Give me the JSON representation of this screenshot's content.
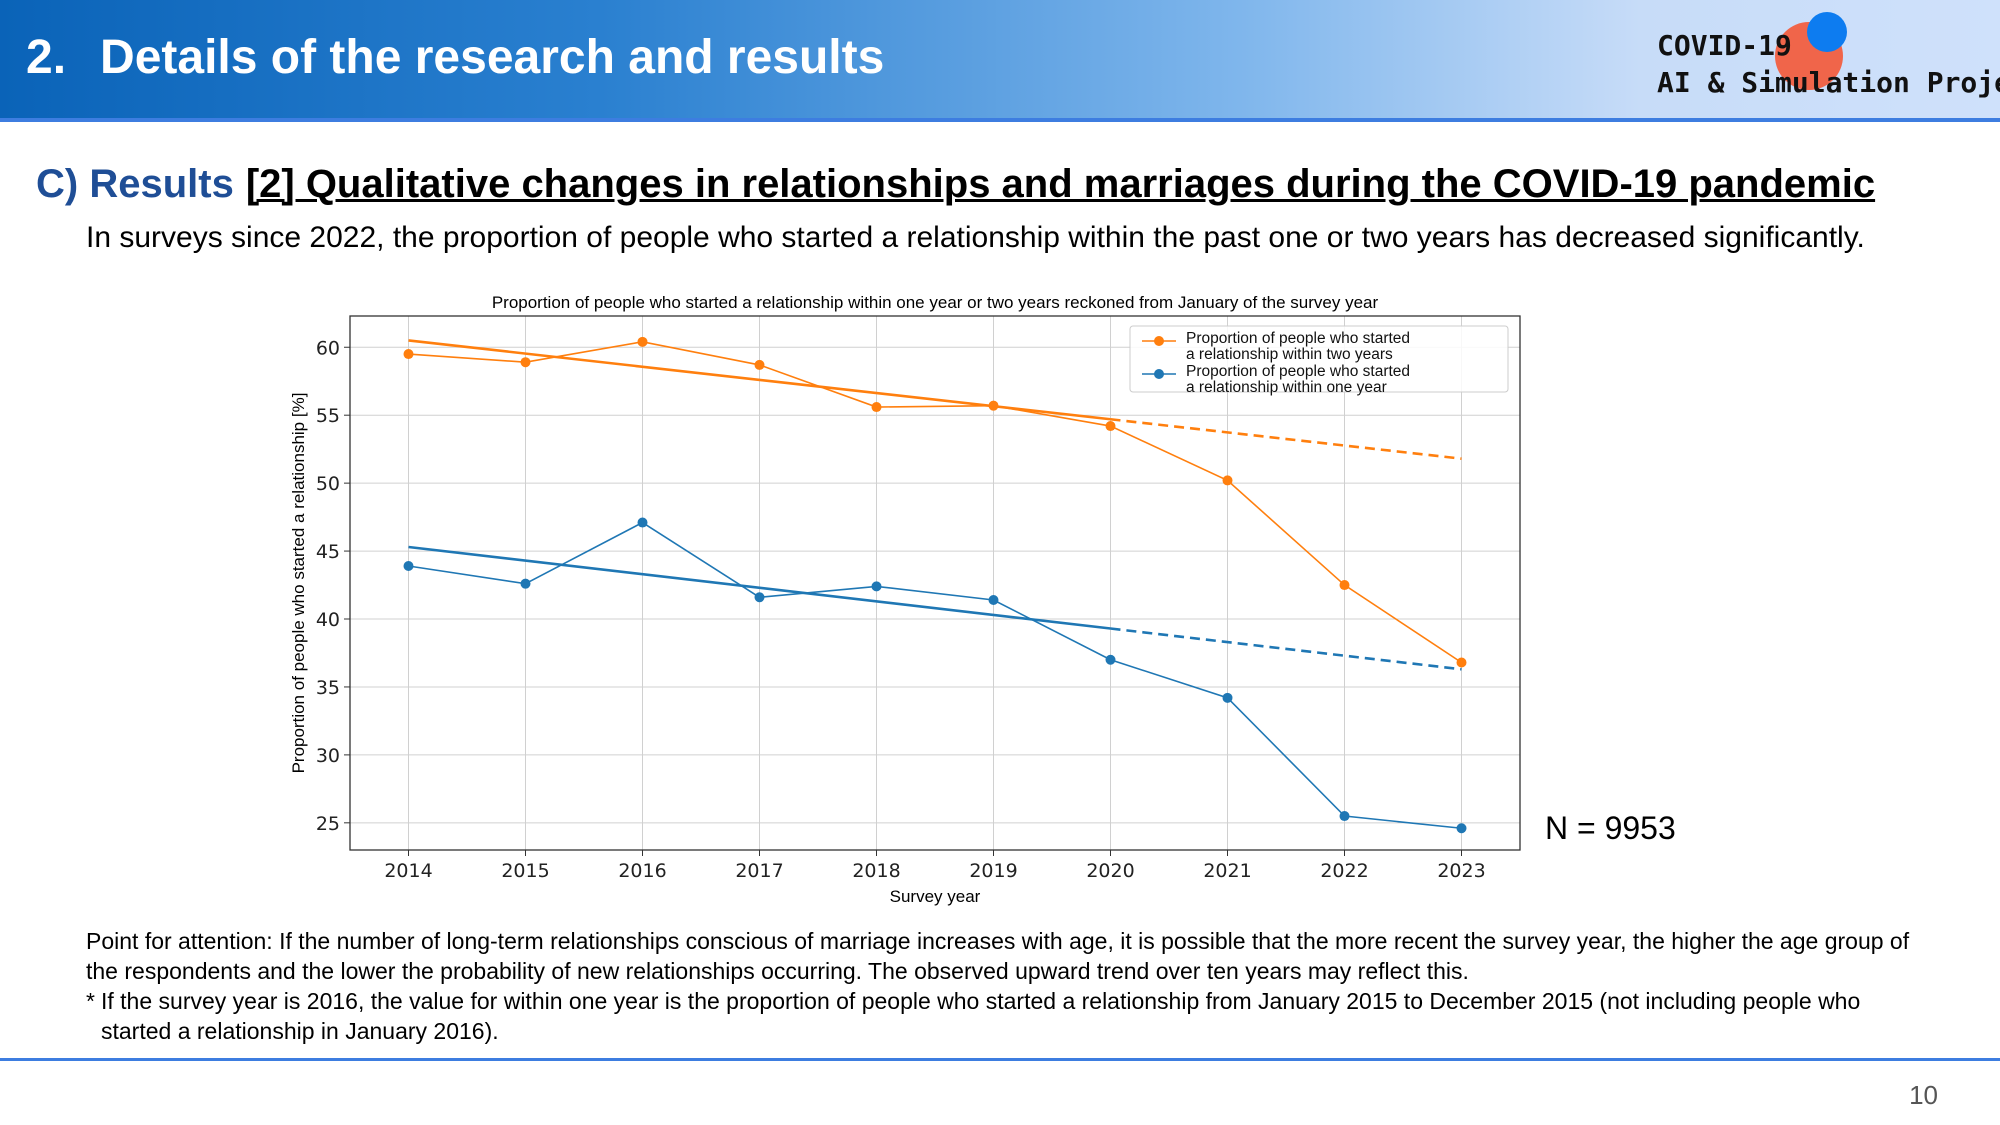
{
  "header": {
    "number": "2.",
    "title": "Details of the research and results",
    "logo_line1": "COVID-19",
    "logo_line2": "AI & Simulation Project"
  },
  "subtitle": {
    "prefix": "C) Results",
    "main": "[2] Qualitative changes in relationships and marriages during the COVID-19 pandemic"
  },
  "intro": "In surveys since 2022, the proportion of people who started a relationship within the past one or two years has decreased significantly.",
  "n_label": "N = 9953",
  "notes": {
    "attention": "Point for attention: If the number of long-term relationships conscious of marriage increases with age, it is possible that the more recent the survey year, the higher the age group of the respondents and the lower the probability of new relationships occurring. The observed upward trend over ten years may reflect this.",
    "footnote_mark": "*",
    "footnote": "If the survey year is 2016, the value for within one year is the proportion of people who started a relationship from January 2015 to December 2015 (not including people who started a relationship in January 2016)."
  },
  "page_number": "10",
  "colors": {
    "orange": "#ff7f0e",
    "blue": "#1f77b4",
    "accent": "#3d7de0",
    "results_blue": "#1f4e96"
  },
  "chart_data": {
    "type": "line",
    "title": "Proportion of people who started a relationship within one year or two years reckoned from January of the survey year",
    "xlabel": "Survey year",
    "ylabel": "Proportion of people who started a relationship [%]",
    "x": [
      2014,
      2015,
      2016,
      2017,
      2018,
      2019,
      2020,
      2021,
      2022,
      2023
    ],
    "xlim": [
      2013.5,
      2023.5
    ],
    "ylim": [
      23,
      62.3
    ],
    "yticks": [
      25,
      30,
      35,
      40,
      45,
      50,
      55,
      60
    ],
    "grid": true,
    "legend_position": "top-right",
    "series": [
      {
        "name": "Proportion of people who started a relationship within two years",
        "legend_lines": [
          "Proportion of people who started",
          "a relationship within two years"
        ],
        "color": "#ff7f0e",
        "values": [
          59.5,
          58.9,
          60.4,
          58.7,
          55.6,
          55.7,
          54.2,
          50.2,
          42.5,
          36.8
        ],
        "trend_solid": [
          [
            2014,
            60.5
          ],
          [
            2020,
            54.7
          ]
        ],
        "trend_dashed": [
          [
            2020,
            54.7
          ],
          [
            2023,
            51.8
          ]
        ]
      },
      {
        "name": "Proportion of people who started a relationship within one year",
        "legend_lines": [
          "Proportion of people who started",
          "a relationship within one year"
        ],
        "color": "#1f77b4",
        "values": [
          43.9,
          42.6,
          47.1,
          41.6,
          42.4,
          41.4,
          37.0,
          34.2,
          25.5,
          24.6
        ],
        "trend_solid": [
          [
            2014,
            45.3
          ],
          [
            2020,
            39.3
          ]
        ],
        "trend_dashed": [
          [
            2020,
            39.3
          ],
          [
            2023,
            36.3
          ]
        ]
      }
    ]
  }
}
